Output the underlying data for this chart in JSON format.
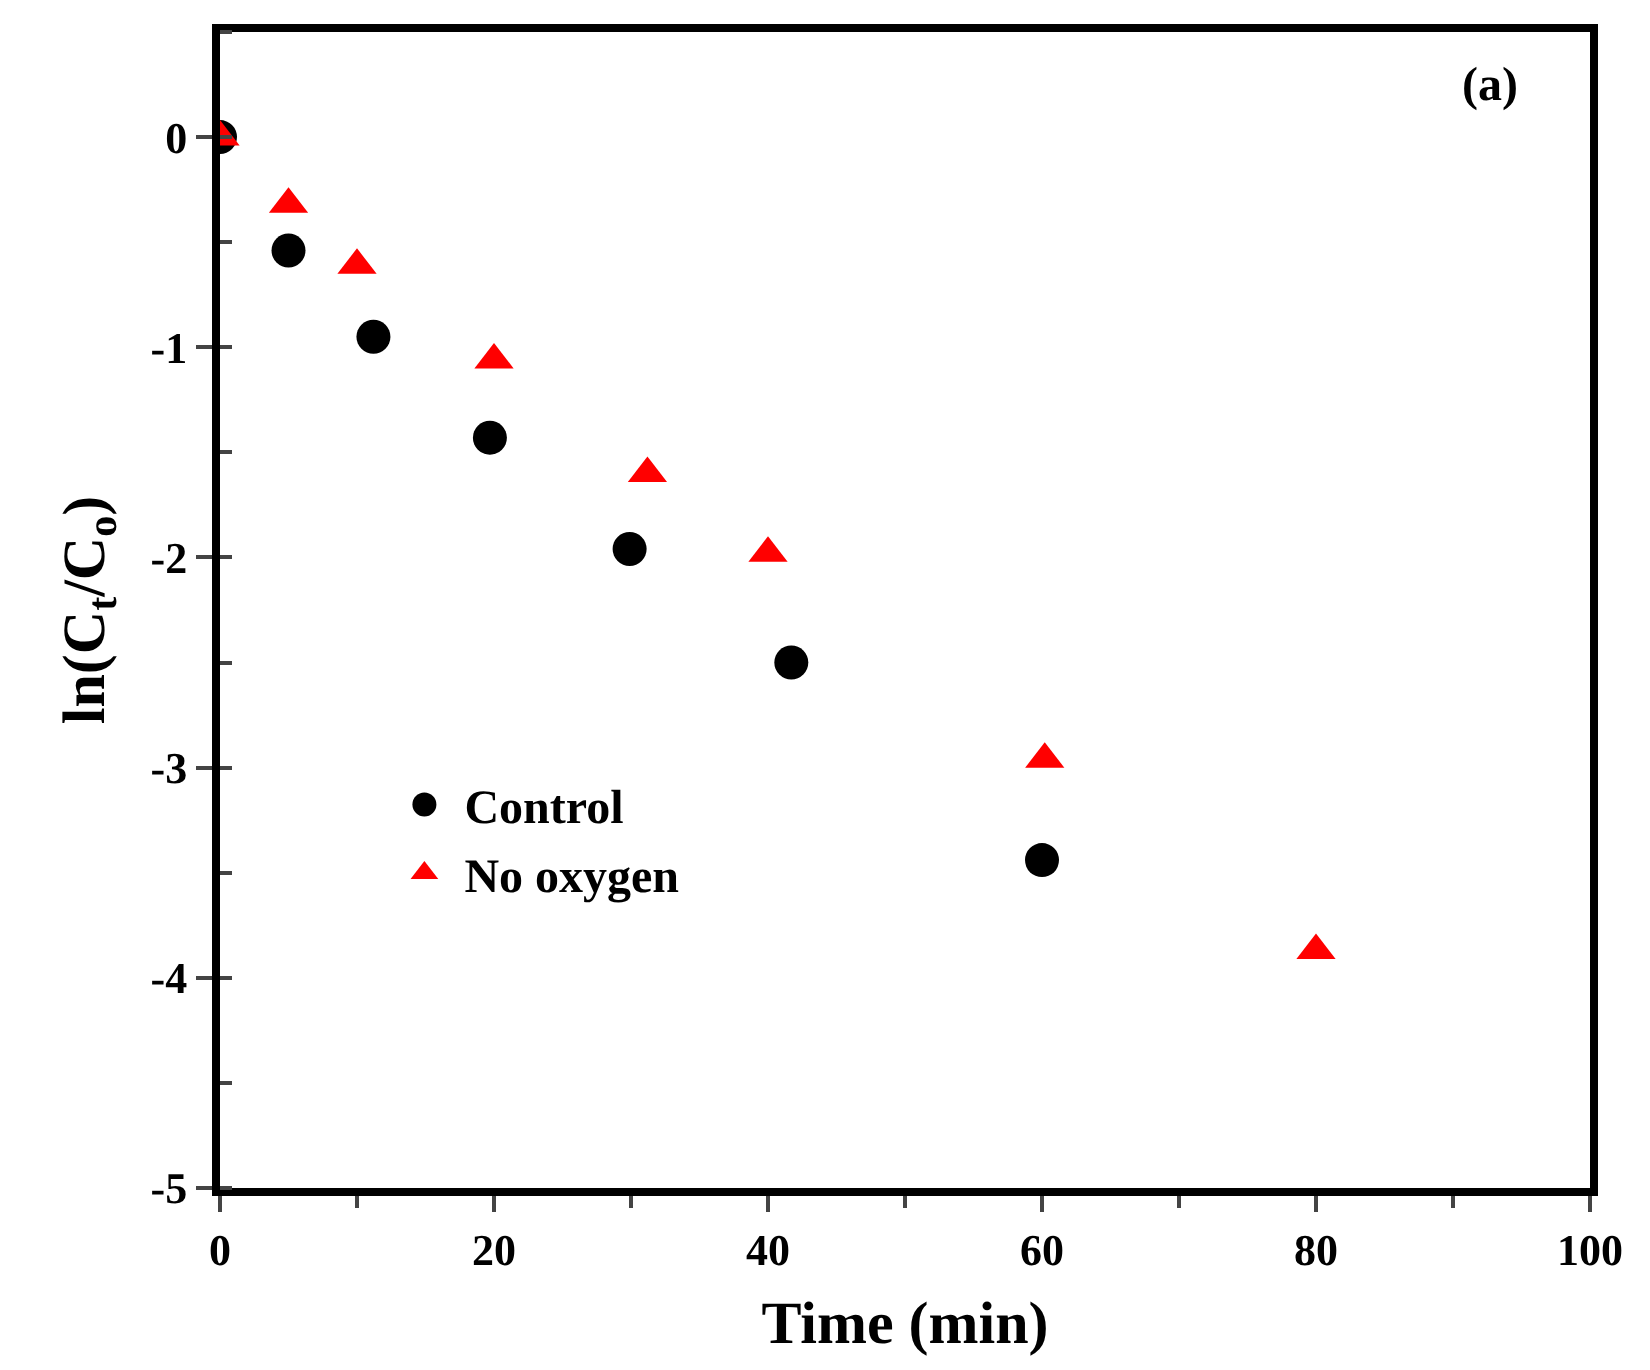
{
  "chart_data": {
    "type": "scatter",
    "title": "(a)",
    "xlabel": "Time (min)",
    "ylabel": "ln(C$_{t}$/C$_{o}$)",
    "xlim": [
      0,
      100
    ],
    "xticks": [
      0,
      20,
      40,
      60,
      80,
      100
    ],
    "ylim": [
      -5,
      0.5
    ],
    "yticks": [
      -5,
      -4,
      -3,
      -2,
      -1,
      0
    ],
    "legend": "left",
    "series": [
      {
        "name": "Control",
        "color": "#000000",
        "marker": "circle",
        "x": [
          0,
          5,
          11.2,
          19.7,
          29.9,
          41.7,
          60
        ],
        "values": [
          0,
          -0.54,
          -0.95,
          -1.43,
          -1.96,
          -2.5,
          -3.44
        ]
      },
      {
        "name": "No oxygen",
        "color": "#ff0000",
        "marker": "triangle",
        "x": [
          0,
          5,
          10,
          20,
          31.2,
          40,
          60.2,
          80
        ],
        "values": [
          0,
          -0.32,
          -0.61,
          -1.06,
          -1.6,
          -1.98,
          -2.96,
          -3.87
        ]
      }
    ]
  }
}
